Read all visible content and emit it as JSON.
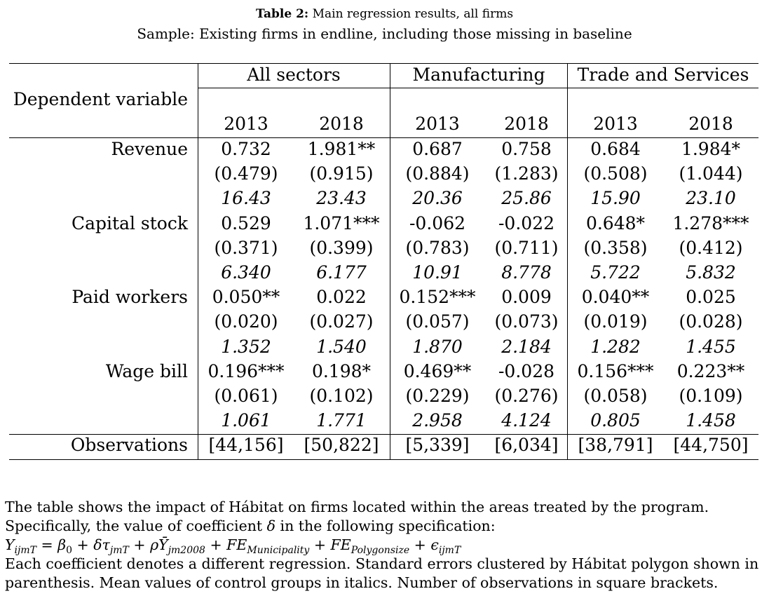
{
  "caption": {
    "label": "Table 2:",
    "title": "Main regression results, all firms",
    "sample": "Sample: Existing firms in endline, including those missing in baseline"
  },
  "table": {
    "groups": [
      "All sectors",
      "Manufacturing",
      "Trade and Services"
    ],
    "dep_var_header": "Dependent variable",
    "years": [
      "2013",
      "2018",
      "2013",
      "2018",
      "2013",
      "2018"
    ],
    "rows": [
      {
        "label": "Revenue",
        "coef": [
          "0.732",
          "1.981**",
          "0.687",
          "0.758",
          "0.684",
          "1.984*"
        ],
        "se": [
          "(0.479)",
          "(0.915)",
          "(0.884)",
          "(1.283)",
          "(0.508)",
          "(1.044)"
        ],
        "mean": [
          "16.43",
          "23.43",
          "20.36",
          "25.86",
          "15.90",
          "23.10"
        ]
      },
      {
        "label": "Capital stock",
        "coef": [
          "0.529",
          "1.071***",
          "-0.062",
          "-0.022",
          "0.648*",
          "1.278***"
        ],
        "se": [
          "(0.371)",
          "(0.399)",
          "(0.783)",
          "(0.711)",
          "(0.358)",
          "(0.412)"
        ],
        "mean": [
          "6.340",
          "6.177",
          "10.91",
          "8.778",
          "5.722",
          "5.832"
        ]
      },
      {
        "label": "Paid workers",
        "coef": [
          "0.050**",
          "0.022",
          "0.152***",
          "0.009",
          "0.040**",
          "0.025"
        ],
        "se": [
          "(0.020)",
          "(0.027)",
          "(0.057)",
          "(0.073)",
          "(0.019)",
          "(0.028)"
        ],
        "mean": [
          "1.352",
          "1.540",
          "1.870",
          "2.184",
          "1.282",
          "1.455"
        ]
      },
      {
        "label": "Wage bill",
        "coef": [
          "0.196***",
          "0.198*",
          "0.469**",
          "-0.028",
          "0.156***",
          "0.223**"
        ],
        "se": [
          "(0.061)",
          "(0.102)",
          "(0.229)",
          "(0.276)",
          "(0.058)",
          "(0.109)"
        ],
        "mean": [
          "1.061",
          "1.771",
          "2.958",
          "4.124",
          "0.805",
          "1.458"
        ]
      }
    ],
    "observations": {
      "label": "Observations",
      "values": [
        "[44,156]",
        "[50,822]",
        "[5,339]",
        "[6,034]",
        "[38,791]",
        "[44,750]"
      ]
    }
  },
  "notes": {
    "line1": "The table shows the impact of Hábitat on firms located within the areas treated by the program.",
    "line2_prefix": "Specifically, the value of coefficient ",
    "line2_symbol": "δ",
    "line2_suffix": " in the following specification:",
    "formula": {
      "Y": "Y",
      "Y_sub": "ijmT",
      "eq": " = ",
      "beta": "β",
      "beta_sub": "0",
      "plus1": " + ",
      "delta": "δτ",
      "tau_sub": "jmT",
      "plus2": " + ",
      "rho": "ρ",
      "Ybar": "Ȳ",
      "Ybar_sub": "jm2008",
      "plus3": " + ",
      "FE1": "FE",
      "FE1_sub": "Municipality",
      "plus4": " + ",
      "FE2": "FE",
      "FE2_sub": "Polygonsize",
      "plus5": " + ",
      "eps": "ϵ",
      "eps_sub": "ijmT"
    },
    "line4": "Each coefficient denotes a different regression. Standard errors clustered by Hábitat polygon shown in",
    "line5": "parenthesis. Mean values of control groups in italics. Number of observations in square brackets."
  }
}
